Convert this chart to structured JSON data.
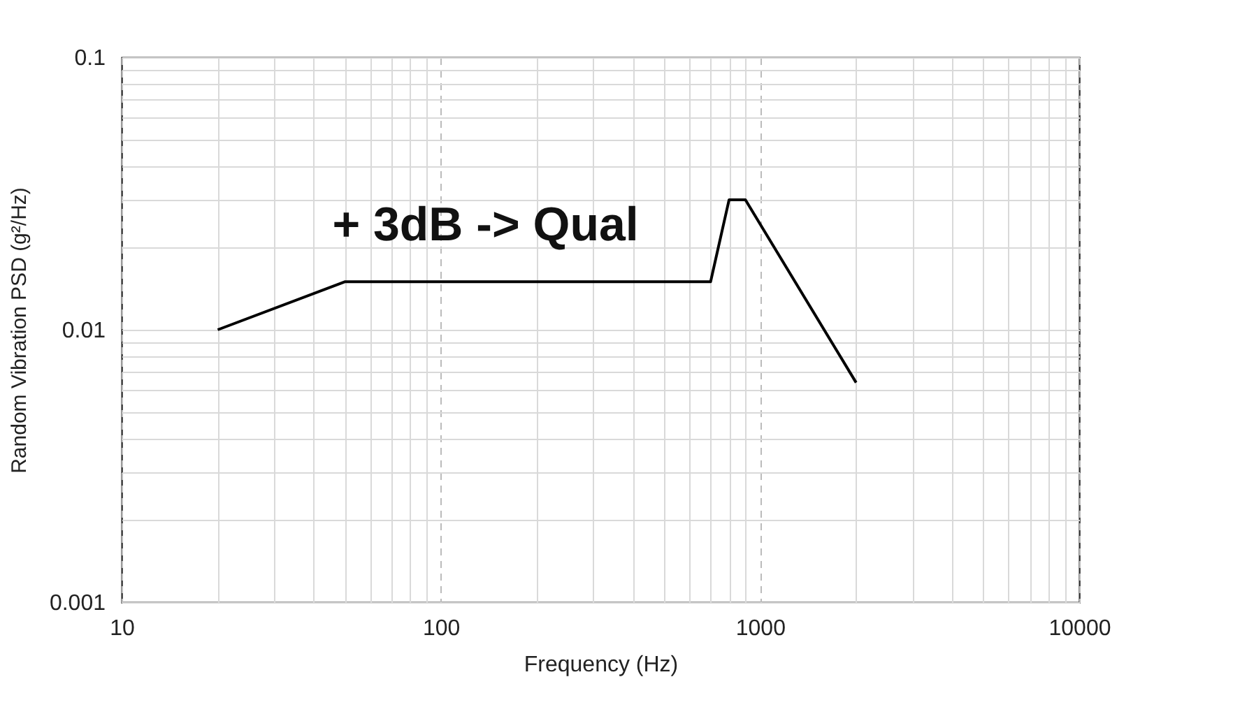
{
  "chart_data": {
    "type": "line",
    "xlabel": "Frequency (Hz)",
    "ylabel": "Random Vibration PSD (g²/Hz)",
    "log": "xy",
    "grid": true,
    "legend": false,
    "marker": "none",
    "line_style": "solid",
    "x": [
      20,
      50,
      700,
      800,
      900,
      2000
    ],
    "series": [
      {
        "color": "#000000",
        "values": [
          0.01,
          0.015,
          0.015,
          0.03,
          0.03,
          0.0064
        ]
      }
    ],
    "xlim": [
      10,
      10000
    ],
    "ylim": [
      0.001,
      0.1
    ],
    "xticks": [
      10,
      {
        "value": 20,
        "label": null
      },
      {
        "value": 30,
        "label": null
      },
      {
        "value": 40,
        "label": null
      },
      {
        "value": 50,
        "label": null
      },
      {
        "value": 60,
        "label": null
      },
      {
        "value": 70,
        "label": null
      },
      {
        "value": 80,
        "label": null
      },
      {
        "value": 90,
        "label": null
      },
      100,
      {
        "value": 200,
        "label": null
      },
      {
        "value": 300,
        "label": null
      },
      {
        "value": 400,
        "label": null
      },
      {
        "value": 500,
        "label": null
      },
      {
        "value": 600,
        "label": null
      },
      {
        "value": 700,
        "label": null
      },
      {
        "value": 800,
        "label": null
      },
      {
        "value": 900,
        "label": null
      },
      1000,
      {
        "value": 2000,
        "label": null
      },
      {
        "value": 3000,
        "label": null
      },
      {
        "value": 4000,
        "label": null
      },
      {
        "value": 5000,
        "label": null
      },
      {
        "value": 6000,
        "label": null
      },
      {
        "value": 7000,
        "label": null
      },
      {
        "value": 8000,
        "label": null
      },
      {
        "value": 9000,
        "label": null
      },
      10000
    ],
    "yticks": [
      0.001,
      {
        "value": 0.002,
        "label": null
      },
      {
        "value": 0.003,
        "label": null
      },
      {
        "value": 0.004,
        "label": null
      },
      {
        "value": 0.005,
        "label": null
      },
      {
        "value": 0.006,
        "label": null
      },
      {
        "value": 0.007,
        "label": null
      },
      {
        "value": 0.008,
        "label": null
      },
      {
        "value": 0.009,
        "label": null
      },
      0.01,
      {
        "value": 0.02,
        "label": null
      },
      {
        "value": 0.03,
        "label": null
      },
      {
        "value": 0.04,
        "label": null
      },
      {
        "value": 0.05,
        "label": null
      },
      {
        "value": 0.06,
        "label": null
      },
      {
        "value": 0.07,
        "label": null
      },
      {
        "value": 0.08,
        "label": null
      },
      {
        "value": 0.09,
        "label": null
      },
      0.1
    ],
    "annotations": [
      "+ 3dB -> Qual"
    ]
  }
}
